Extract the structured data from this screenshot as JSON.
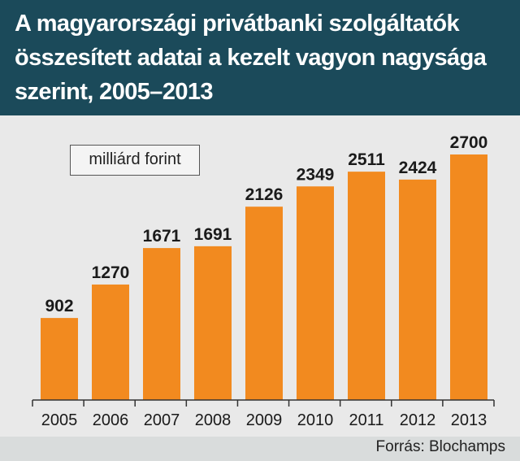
{
  "title": "A magyarországi privátbanki szolgáltatók összesített adatai a kezelt vagyon nagysága szerint, 2005–2013",
  "unit_label": "milliárd forint",
  "source": "Forrás: Blochamps",
  "colors": {
    "bar": "#f28a1f",
    "header": "#1b4a5a",
    "background": "#e9e9e9",
    "footer": "#d9dcdc"
  },
  "chart_data": {
    "type": "bar",
    "title": "A magyarországi privátbanki szolgáltatók összesített adatai a kezelt vagyon nagysága szerint, 2005–2013",
    "categories": [
      "2005",
      "2006",
      "2007",
      "2008",
      "2009",
      "2010",
      "2011",
      "2012",
      "2013"
    ],
    "values": [
      902,
      1270,
      1671,
      1691,
      2126,
      2349,
      2511,
      2424,
      2700
    ],
    "xlabel": "",
    "ylabel": "",
    "unit": "milliárd forint",
    "ylim": [
      0,
      2700
    ],
    "grid": false,
    "legend": "none",
    "data_labels": true
  }
}
